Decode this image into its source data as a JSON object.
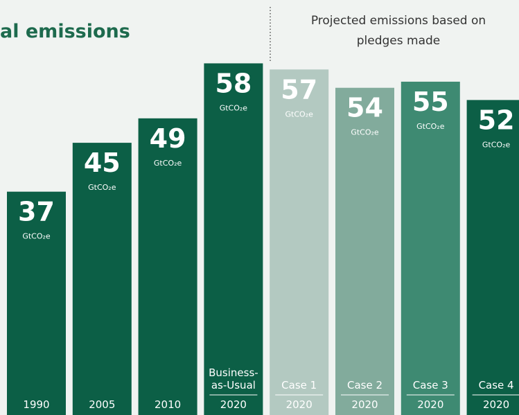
{
  "chart_data": {
    "type": "bar",
    "title": "al emissions",
    "annotation": "Projected emissions based on pledges made",
    "categories": [
      "1990",
      "2005",
      "2010",
      "2020",
      "2020",
      "2020",
      "2020",
      "2020"
    ],
    "groups": [
      null,
      null,
      null,
      "Business-as-Usual",
      "Case 1",
      "Case 2",
      "Case 3",
      "Case 4"
    ],
    "values": [
      37,
      45,
      49,
      58,
      57,
      54,
      55,
      52
    ],
    "unit": "GtCO₂e",
    "colors": [
      "#0c5f46",
      "#0c5f46",
      "#0c5f46",
      "#0c5f46",
      "#b3c9c1",
      "#82ab9c",
      "#3e8a72",
      "#0c5f46"
    ]
  }
}
